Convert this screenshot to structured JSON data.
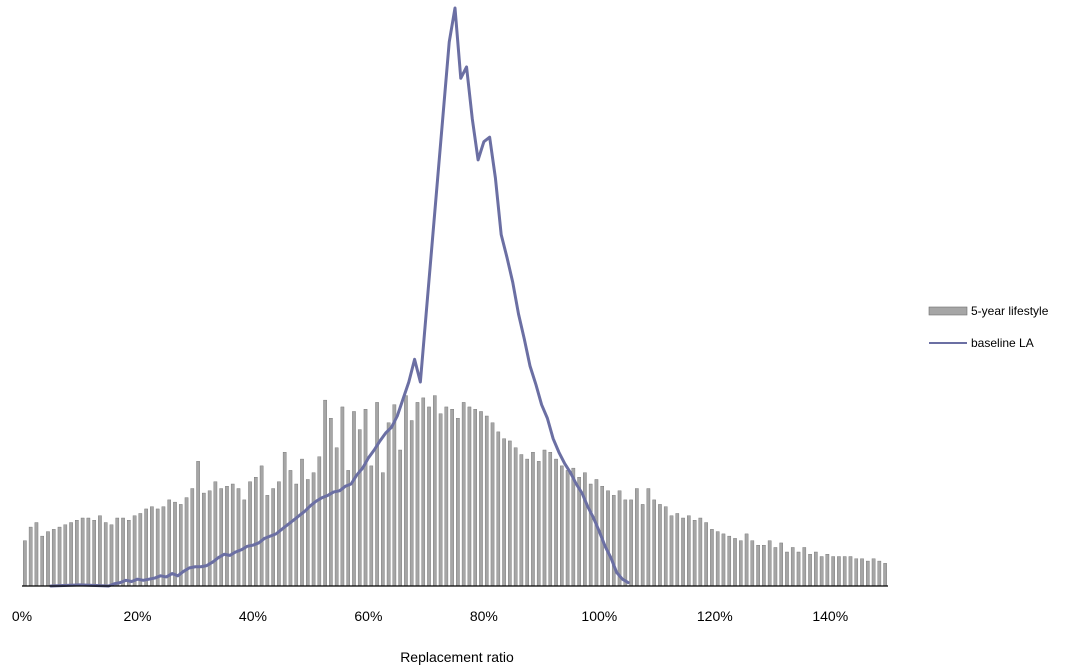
{
  "chart_data": {
    "type": "bar",
    "title": "",
    "xlabel": "Replacement ratio",
    "ylabel": "",
    "xlim": [
      0,
      150
    ],
    "x_ticks": [
      "0%",
      "20%",
      "40%",
      "60%",
      "80%",
      "100%",
      "120%",
      "140%"
    ],
    "x_tick_values": [
      0,
      20,
      40,
      60,
      80,
      100,
      120,
      140
    ],
    "legend_position": "right",
    "grid": false,
    "y_axis_visible": false,
    "series": [
      {
        "name": "5-year lifestyle",
        "render": "bar",
        "color": "#a6a6a6",
        "edge_color": "#6e6e6e",
        "x": [
          0,
          1,
          2,
          3,
          4,
          5,
          6,
          7,
          8,
          9,
          10,
          11,
          12,
          13,
          14,
          15,
          16,
          17,
          18,
          19,
          20,
          21,
          22,
          23,
          24,
          25,
          26,
          27,
          28,
          29,
          30,
          31,
          32,
          33,
          34,
          35,
          36,
          37,
          38,
          39,
          40,
          41,
          42,
          43,
          44,
          45,
          46,
          47,
          48,
          49,
          50,
          51,
          52,
          53,
          54,
          55,
          56,
          57,
          58,
          59,
          60,
          61,
          62,
          63,
          64,
          65,
          66,
          67,
          68,
          69,
          70,
          71,
          72,
          73,
          74,
          75,
          76,
          77,
          78,
          79,
          80,
          81,
          82,
          83,
          84,
          85,
          86,
          87,
          88,
          89,
          90,
          91,
          92,
          93,
          94,
          95,
          96,
          97,
          98,
          99,
          100,
          101,
          102,
          103,
          104,
          105,
          106,
          107,
          108,
          109,
          110,
          111,
          112,
          113,
          114,
          115,
          116,
          117,
          118,
          119,
          120,
          121,
          122,
          123,
          124,
          125,
          126,
          127,
          128,
          129,
          130,
          131,
          132,
          133,
          134,
          135,
          136,
          137,
          138,
          139,
          140,
          141,
          142,
          143,
          144,
          145,
          146,
          147,
          148,
          149
        ],
        "values": [
          40,
          52,
          56,
          44,
          48,
          50,
          52,
          54,
          56,
          58,
          60,
          60,
          58,
          62,
          56,
          54,
          60,
          60,
          58,
          62,
          64,
          68,
          70,
          68,
          70,
          76,
          74,
          72,
          78,
          86,
          110,
          82,
          84,
          92,
          86,
          88,
          90,
          86,
          76,
          92,
          96,
          106,
          80,
          86,
          92,
          118,
          102,
          90,
          112,
          94,
          100,
          114,
          164,
          148,
          122,
          158,
          102,
          154,
          138,
          156,
          106,
          162,
          100,
          144,
          160,
          120,
          168,
          146,
          162,
          166,
          158,
          168,
          152,
          158,
          156,
          148,
          162,
          158,
          156,
          154,
          150,
          144,
          136,
          130,
          128,
          122,
          116,
          112,
          118,
          110,
          120,
          118,
          112,
          106,
          102,
          104,
          96,
          100,
          90,
          94,
          88,
          84,
          80,
          84,
          76,
          76,
          86,
          72,
          86,
          76,
          72,
          70,
          62,
          64,
          60,
          62,
          58,
          60,
          56,
          50,
          48,
          46,
          44,
          42,
          40,
          46,
          40,
          36,
          36,
          40,
          34,
          38,
          30,
          34,
          30,
          34,
          28,
          30,
          26,
          28,
          26,
          26,
          26,
          26,
          24,
          24,
          22,
          24,
          22,
          20
        ]
      },
      {
        "name": "baseline LA",
        "render": "line",
        "color": "#6b6fa3",
        "x": [
          5,
          10,
          15,
          16,
          17,
          18,
          19,
          20,
          21,
          22,
          23,
          24,
          25,
          26,
          27,
          28,
          29,
          30,
          31,
          32,
          33,
          34,
          35,
          36,
          37,
          38,
          39,
          40,
          41,
          42,
          43,
          44,
          45,
          46,
          47,
          48,
          49,
          50,
          51,
          52,
          53,
          54,
          55,
          56,
          57,
          58,
          59,
          60,
          61,
          62,
          63,
          64,
          65,
          66,
          67,
          68,
          69,
          70,
          71,
          72,
          73,
          74,
          75,
          76,
          77,
          78,
          79,
          80,
          81,
          82,
          83,
          84,
          85,
          86,
          87,
          88,
          89,
          90,
          91,
          92,
          93,
          94,
          95,
          96,
          97,
          98,
          99,
          100,
          101,
          102,
          103,
          104,
          105
        ],
        "values": [
          0,
          1,
          0,
          2,
          3,
          5,
          4,
          6,
          5,
          6,
          7,
          9,
          8,
          11,
          9,
          13,
          16,
          17,
          17,
          18,
          21,
          25,
          28,
          27,
          30,
          32,
          35,
          36,
          38,
          42,
          44,
          46,
          50,
          54,
          58,
          62,
          66,
          71,
          75,
          78,
          80,
          83,
          84,
          88,
          90,
          98,
          104,
          113,
          120,
          128,
          135,
          140,
          150,
          165,
          180,
          200,
          180,
          240,
          300,
          360,
          420,
          480,
          510,
          448,
          458,
          412,
          376,
          392,
          396,
          360,
          310,
          290,
          268,
          240,
          218,
          194,
          178,
          160,
          148,
          130,
          118,
          108,
          100,
          90,
          82,
          70,
          60,
          48,
          35,
          25,
          12,
          6,
          3
        ]
      }
    ]
  }
}
